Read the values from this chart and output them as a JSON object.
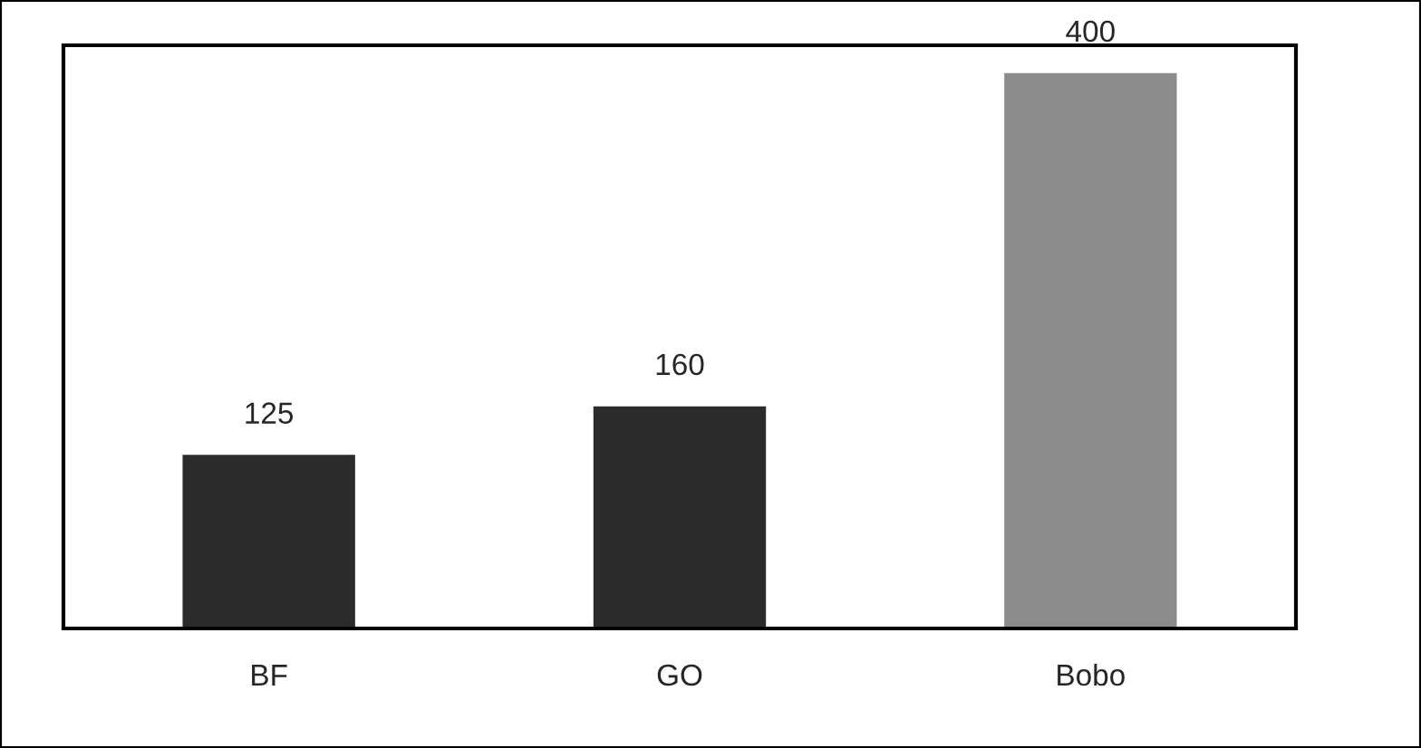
{
  "chart_data": {
    "type": "bar",
    "categories": [
      "BF",
      "GO",
      "Bobo"
    ],
    "values": [
      125,
      160,
      400
    ],
    "colors": [
      "#2b2b2b",
      "#2b2b2b",
      "#8c8c8c"
    ],
    "data_labels": true,
    "grid": false,
    "legend": false
  }
}
